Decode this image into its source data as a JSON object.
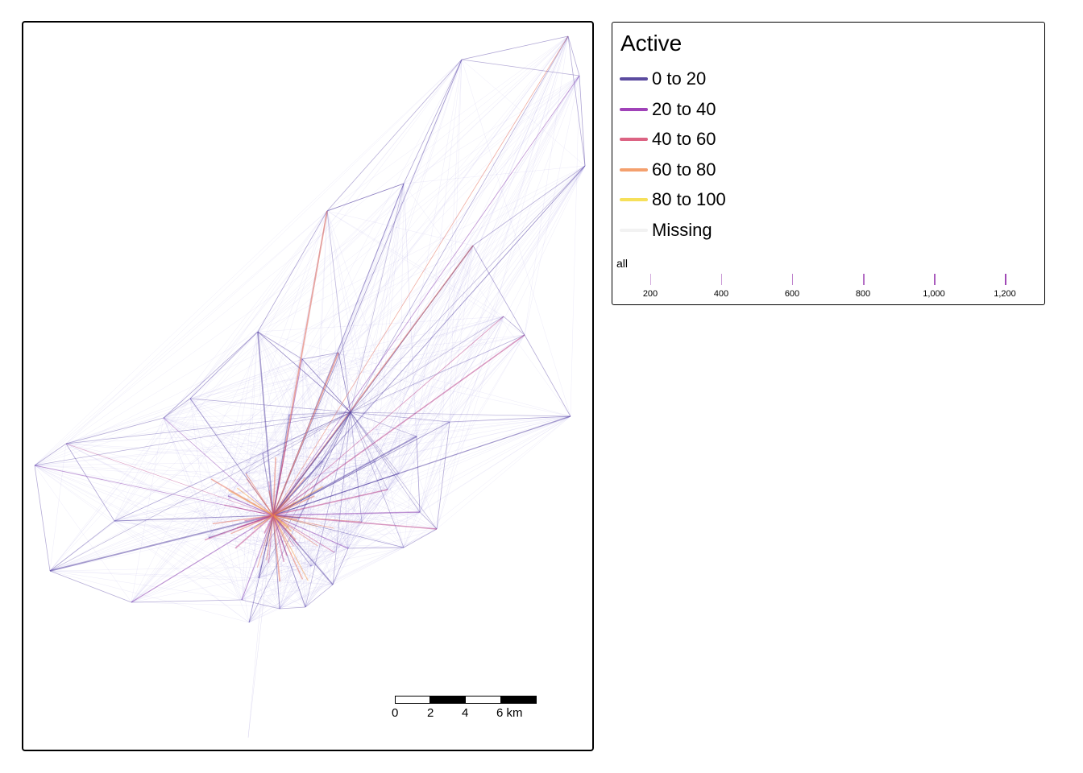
{
  "map": {
    "line_palette": [
      "#5d4aa6",
      "#8c3fb0",
      "#c0488e",
      "#e46a55",
      "#f39c45"
    ]
  },
  "legend": {
    "title": "Active",
    "items": [
      {
        "label": "0 to 20",
        "color": "#5b4b9f"
      },
      {
        "label": "20 to 40",
        "color": "#a042b8"
      },
      {
        "label": "40 to 60",
        "color": "#dc6383"
      },
      {
        "label": "60 to 80",
        "color": "#f4a06e"
      },
      {
        "label": "80 to 100",
        "color": "#f6e05a"
      },
      {
        "label": "Missing",
        "color": "#f2f2f2"
      }
    ],
    "width_title": "all",
    "width_ticks": [
      "200",
      "400",
      "600",
      "800",
      "1,000",
      "1,200"
    ]
  },
  "scalebar": {
    "labels": [
      "0",
      "2",
      "4",
      "6 km"
    ]
  }
}
